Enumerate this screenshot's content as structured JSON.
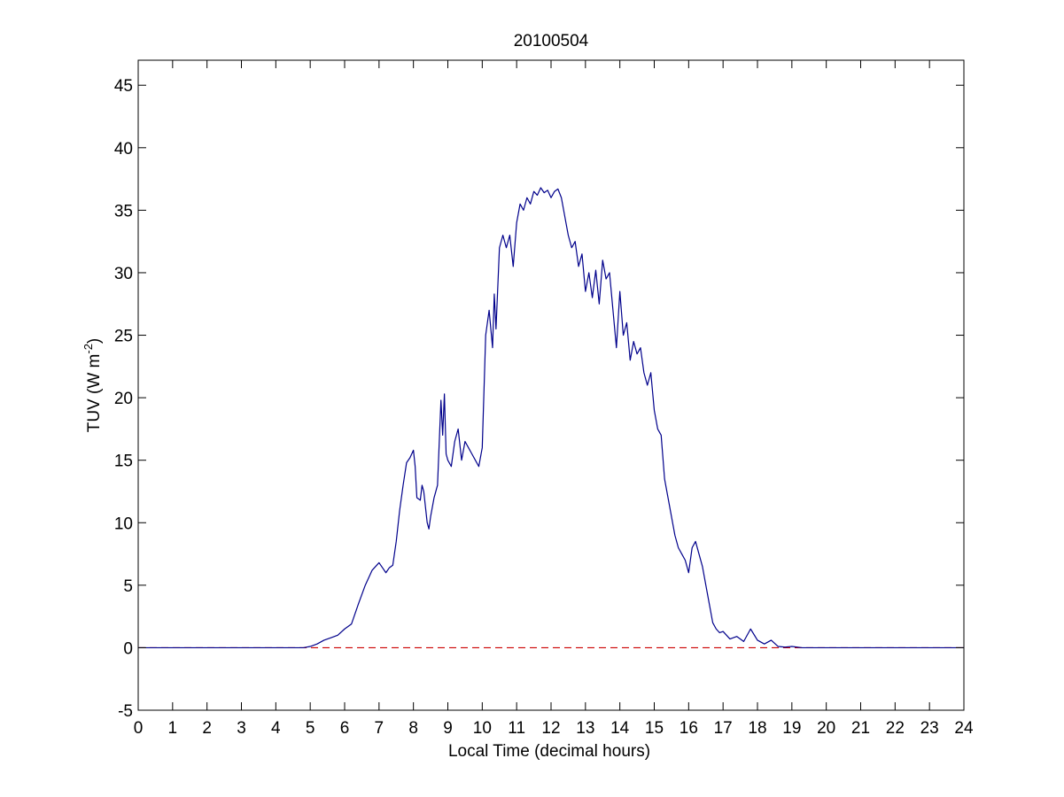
{
  "chart_data": {
    "type": "line",
    "title": "20100504",
    "xlabel": "Local Time (decimal hours)",
    "ylabel": {
      "prefix": "TUV (W m",
      "superscript": "-2",
      "suffix": ")"
    },
    "xlim": [
      0,
      24
    ],
    "ylim": [
      -5,
      47
    ],
    "xticks": [
      "0",
      "1",
      "2",
      "3",
      "4",
      "5",
      "6",
      "7",
      "8",
      "9",
      "10",
      "11",
      "12",
      "13",
      "14",
      "15",
      "16",
      "17",
      "18",
      "19",
      "20",
      "21",
      "22",
      "23",
      "24"
    ],
    "yticks": [
      "-5",
      "0",
      "5",
      "10",
      "15",
      "20",
      "25",
      "30",
      "35",
      "40",
      "45"
    ],
    "grid": false,
    "legend": "none",
    "series": [
      {
        "color": "#00008b",
        "style": "solid",
        "x": [
          0,
          4.8,
          5.0,
          5.2,
          5.4,
          5.6,
          5.8,
          6.0,
          6.2,
          6.4,
          6.6,
          6.8,
          6.9,
          7.0,
          7.1,
          7.2,
          7.3,
          7.4,
          7.5,
          7.6,
          7.7,
          7.8,
          7.9,
          8.0,
          8.05,
          8.1,
          8.2,
          8.25,
          8.3,
          8.4,
          8.45,
          8.5,
          8.6,
          8.7,
          8.8,
          8.85,
          8.9,
          8.95,
          9.0,
          9.1,
          9.2,
          9.3,
          9.4,
          9.5,
          9.6,
          9.7,
          9.8,
          9.9,
          10.0,
          10.1,
          10.2,
          10.3,
          10.35,
          10.4,
          10.5,
          10.6,
          10.7,
          10.8,
          10.9,
          11.0,
          11.1,
          11.2,
          11.3,
          11.4,
          11.5,
          11.6,
          11.7,
          11.8,
          11.9,
          12.0,
          12.1,
          12.2,
          12.3,
          12.4,
          12.5,
          12.6,
          12.7,
          12.8,
          12.9,
          13.0,
          13.1,
          13.2,
          13.3,
          13.4,
          13.5,
          13.6,
          13.7,
          13.8,
          13.9,
          14.0,
          14.1,
          14.2,
          14.3,
          14.4,
          14.5,
          14.6,
          14.7,
          14.8,
          14.9,
          15.0,
          15.1,
          15.2,
          15.3,
          15.4,
          15.5,
          15.6,
          15.7,
          15.8,
          15.9,
          16.0,
          16.1,
          16.2,
          16.3,
          16.4,
          16.5,
          16.6,
          16.7,
          16.8,
          16.9,
          17.0,
          17.2,
          17.4,
          17.6,
          17.8,
          18.0,
          18.2,
          18.4,
          18.6,
          18.8,
          19.0,
          19.3,
          19.6,
          20.0,
          24.0
        ],
        "y": [
          0,
          0,
          0.1,
          0.3,
          0.6,
          0.8,
          1.0,
          1.5,
          1.9,
          3.5,
          5.0,
          6.2,
          6.5,
          6.8,
          6.4,
          6.0,
          6.4,
          6.6,
          8.5,
          11.0,
          13.0,
          14.8,
          15.2,
          15.8,
          14.5,
          12.0,
          11.8,
          13.0,
          12.5,
          10.0,
          9.5,
          10.5,
          12.0,
          13.0,
          19.8,
          17.0,
          20.3,
          15.5,
          15.0,
          14.5,
          16.5,
          17.5,
          15.0,
          16.5,
          16.0,
          15.5,
          15.0,
          14.5,
          16.0,
          25.0,
          27.0,
          24.0,
          28.3,
          25.5,
          32.0,
          33.0,
          32.0,
          33.0,
          30.5,
          34.0,
          35.5,
          35.0,
          36.0,
          35.5,
          36.5,
          36.2,
          36.8,
          36.4,
          36.6,
          36.0,
          36.5,
          36.7,
          36.0,
          34.5,
          33.0,
          32.0,
          32.5,
          30.5,
          31.5,
          28.5,
          30.0,
          28.0,
          30.2,
          27.5,
          31.0,
          29.5,
          30.0,
          27.0,
          24.0,
          28.5,
          25.0,
          26.0,
          23.0,
          24.5,
          23.5,
          24.0,
          22.0,
          21.0,
          22.0,
          19.0,
          17.5,
          17.0,
          13.5,
          12.0,
          10.5,
          9.0,
          8.0,
          7.5,
          7.0,
          6.0,
          8.0,
          8.5,
          7.5,
          6.5,
          5.0,
          3.5,
          2.0,
          1.5,
          1.2,
          1.3,
          0.7,
          0.9,
          0.5,
          1.5,
          0.6,
          0.3,
          0.6,
          0.1,
          0.05,
          0.1,
          0,
          0,
          0,
          0
        ]
      },
      {
        "color": "#cc0000",
        "style": "dashed",
        "x": [
          0,
          24
        ],
        "y": [
          0,
          0
        ]
      }
    ]
  }
}
